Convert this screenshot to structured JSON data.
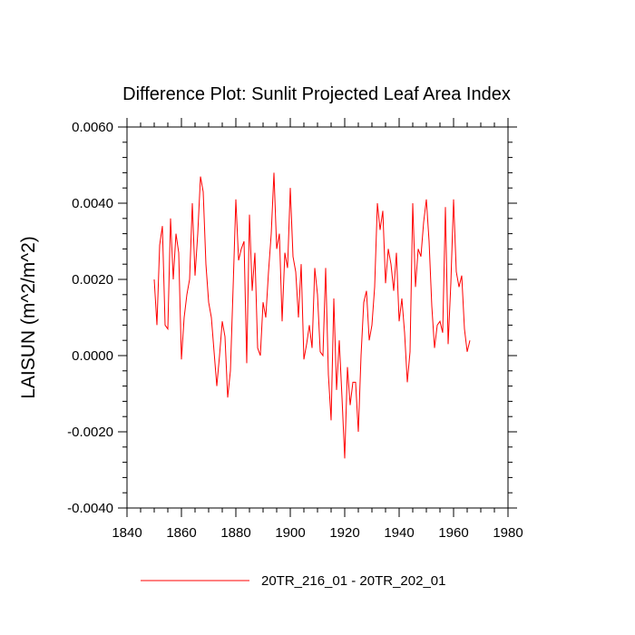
{
  "chart_data": {
    "type": "line",
    "title": "Difference Plot: Sunlit Projected Leaf Area Index",
    "xlabel": "",
    "ylabel": "LAISUN  (m^2/m^2)",
    "xlim": [
      1840,
      1980
    ],
    "ylim": [
      -0.004,
      0.006
    ],
    "xticks": [
      1840,
      1860,
      1880,
      1900,
      1920,
      1940,
      1960,
      1980
    ],
    "xtick_labels": [
      "1840",
      "1860",
      "1880",
      "1900",
      "1920",
      "1940",
      "1960",
      "1980"
    ],
    "yticks": [
      -0.004,
      -0.002,
      0.0,
      0.002,
      0.004,
      0.006
    ],
    "ytick_labels": [
      "-0.0040",
      "-0.0020",
      "0.0000",
      "0.0020",
      "0.0040",
      "0.0060"
    ],
    "grid": false,
    "legend_position": "bottom-center",
    "series": [
      {
        "name": "20TR_216_01 - 20TR_202_01",
        "color": "#ff0000",
        "x": [
          1850,
          1851,
          1852,
          1853,
          1854,
          1855,
          1856,
          1857,
          1858,
          1859,
          1860,
          1861,
          1862,
          1863,
          1864,
          1865,
          1866,
          1867,
          1868,
          1869,
          1870,
          1871,
          1872,
          1873,
          1874,
          1875,
          1876,
          1877,
          1878,
          1879,
          1880,
          1881,
          1882,
          1883,
          1884,
          1885,
          1886,
          1887,
          1888,
          1889,
          1890,
          1891,
          1892,
          1893,
          1894,
          1895,
          1896,
          1897,
          1898,
          1899,
          1900,
          1901,
          1902,
          1903,
          1904,
          1905,
          1906,
          1907,
          1908,
          1909,
          1910,
          1911,
          1912,
          1913,
          1914,
          1915,
          1916,
          1917,
          1918,
          1919,
          1920,
          1921,
          1922,
          1923,
          1924,
          1925,
          1926,
          1927,
          1928,
          1929,
          1930,
          1931,
          1932,
          1933,
          1934,
          1935,
          1936,
          1937,
          1938,
          1939,
          1940,
          1941,
          1942,
          1943,
          1944,
          1945,
          1946,
          1947,
          1948,
          1949,
          1950,
          1951,
          1952,
          1953,
          1954,
          1955,
          1956,
          1957,
          1958,
          1959,
          1960,
          1961,
          1962,
          1963,
          1964,
          1965,
          1966
        ],
        "values": [
          0.002,
          0.0008,
          0.0029,
          0.0034,
          0.0008,
          0.0007,
          0.0036,
          0.002,
          0.0032,
          0.0027,
          -0.0001,
          0.001,
          0.0016,
          0.002,
          0.004,
          0.0021,
          0.0032,
          0.0047,
          0.0043,
          0.0024,
          0.0014,
          0.001,
          0.0001,
          -0.0008,
          0.0,
          0.0009,
          0.0005,
          -0.0011,
          -0.0004,
          0.0018,
          0.0041,
          0.0025,
          0.0028,
          0.003,
          -0.0002,
          0.0037,
          0.0017,
          0.0027,
          0.0002,
          0.0,
          0.0014,
          0.001,
          0.0022,
          0.0032,
          0.0048,
          0.0028,
          0.0032,
          0.0009,
          0.0027,
          0.0023,
          0.0044,
          0.0026,
          0.0022,
          0.001,
          0.0024,
          -0.0001,
          0.0003,
          0.0008,
          0.0002,
          0.0023,
          0.0016,
          0.0001,
          0.0,
          0.0023,
          -0.0005,
          -0.0017,
          0.0015,
          -0.0009,
          0.0004,
          -0.0011,
          -0.0027,
          -0.0003,
          -0.0013,
          -0.0007,
          -0.0007,
          -0.002,
          0.0,
          0.0014,
          0.0017,
          0.0004,
          0.0008,
          0.0018,
          0.004,
          0.0033,
          0.0038,
          0.0019,
          0.0028,
          0.0024,
          0.0017,
          0.0027,
          0.0009,
          0.0015,
          0.0006,
          -0.0007,
          0.0001,
          0.004,
          0.0018,
          0.0028,
          0.0026,
          0.0035,
          0.0041,
          0.003,
          0.0013,
          0.0002,
          0.0008,
          0.0009,
          0.0006,
          0.0039,
          0.0003,
          0.0019,
          0.0041,
          0.0022,
          0.0018,
          0.0021,
          0.0007,
          0.0001,
          0.0004
        ]
      }
    ]
  }
}
